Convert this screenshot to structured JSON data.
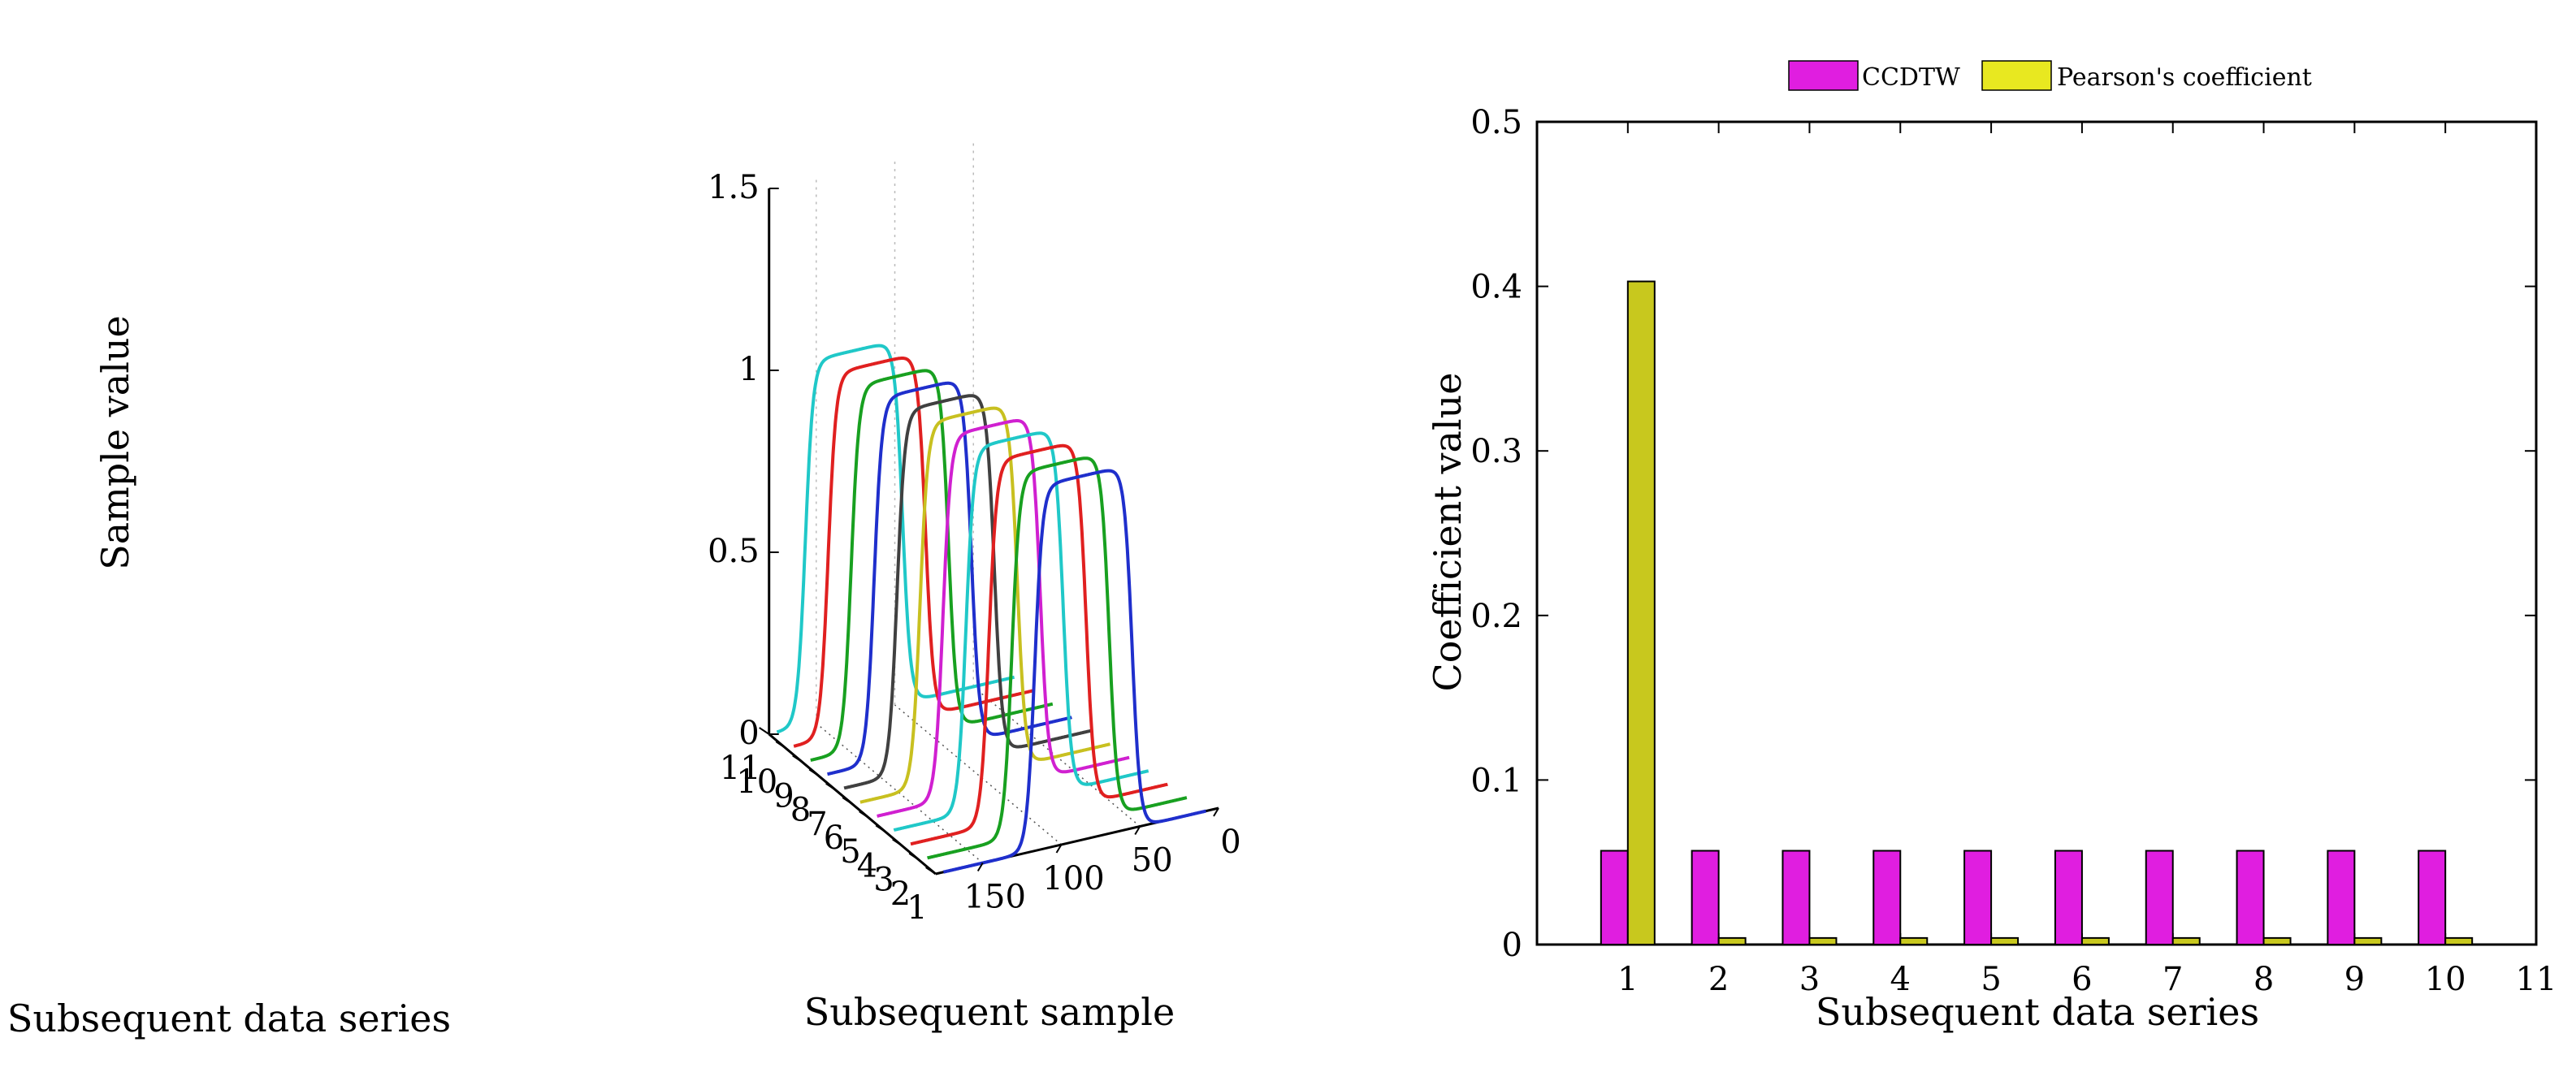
{
  "chart_data": [
    {
      "type": "line",
      "projection": "3d-waterfall",
      "title": "",
      "xlabel": "Subsequent sample",
      "ylabel": "Subsequent data series",
      "zlabel": "Sample value",
      "x_ticks": [
        "0",
        "50",
        "100",
        "150"
      ],
      "xlim": [
        0,
        180
      ],
      "y_ticks": [
        "1",
        "2",
        "3",
        "4",
        "5",
        "6",
        "7",
        "8",
        "9",
        "10",
        "11"
      ],
      "ylim": [
        1,
        11
      ],
      "z_ticks": [
        "0",
        "0.5",
        "1",
        "1.5"
      ],
      "zlim": [
        0,
        1.5
      ],
      "series_profile": {
        "description": "plateau pulse, baseline 0.0 rising to ~1.0",
        "baseline": 0.0,
        "plateau": 1.0,
        "pulse_width": 62,
        "rise_width": 4
      },
      "series": [
        {
          "name": "1",
          "color": "#1f2fcc",
          "pulse_start": 55
        },
        {
          "name": "2",
          "color": "#18a020",
          "pulse_start": 59
        },
        {
          "name": "3",
          "color": "#e02020",
          "pulse_start": 63
        },
        {
          "name": "4",
          "color": "#20c8c8",
          "pulse_start": 67
        },
        {
          "name": "5",
          "color": "#d020d0",
          "pulse_start": 71
        },
        {
          "name": "6",
          "color": "#c8c020",
          "pulse_start": 75
        },
        {
          "name": "7",
          "color": "#404040",
          "pulse_start": 79
        },
        {
          "name": "8",
          "color": "#1f2fcc",
          "pulse_start": 83
        },
        {
          "name": "9",
          "color": "#18a020",
          "pulse_start": 87
        },
        {
          "name": "10",
          "color": "#e02020",
          "pulse_start": 91
        },
        {
          "name": "11",
          "color": "#20c8c8",
          "pulse_start": 95
        }
      ]
    },
    {
      "type": "bar",
      "title": "",
      "xlabel": "Subsequent data series",
      "ylabel": "Coefficient value",
      "x_ticks": [
        "1",
        "2",
        "3",
        "4",
        "5",
        "6",
        "7",
        "8",
        "9",
        "10",
        "11"
      ],
      "xlim": [
        0,
        11
      ],
      "y_ticks": [
        "0",
        "0.1",
        "0.2",
        "0.3",
        "0.4",
        "0.5"
      ],
      "ylim": [
        0,
        0.5
      ],
      "legend_position": "top-center",
      "categories": [
        1,
        2,
        3,
        4,
        5,
        6,
        7,
        8,
        9,
        10
      ],
      "series": [
        {
          "name": "CCDTW",
          "color": "#e01ee0",
          "values": [
            0.057,
            0.057,
            0.057,
            0.057,
            0.057,
            0.057,
            0.057,
            0.057,
            0.057,
            0.057
          ]
        },
        {
          "name": "Pearson's coefficient",
          "color": "#c8c81e",
          "values": [
            0.403,
            0.004,
            0.004,
            0.004,
            0.004,
            0.004,
            0.004,
            0.004,
            0.004,
            0.004
          ]
        }
      ]
    }
  ]
}
